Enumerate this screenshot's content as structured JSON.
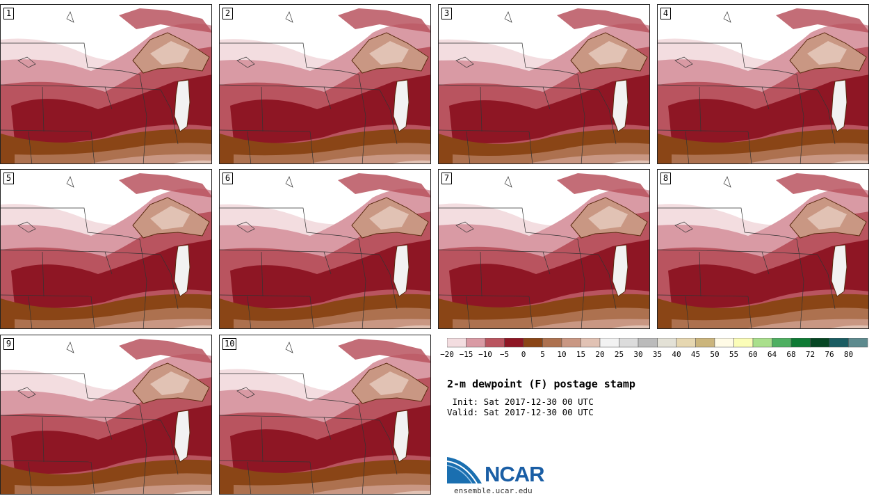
{
  "panels": [
    {
      "label": "1"
    },
    {
      "label": "2"
    },
    {
      "label": "3"
    },
    {
      "label": "4"
    },
    {
      "label": "5"
    },
    {
      "label": "6"
    },
    {
      "label": "7"
    },
    {
      "label": "8"
    },
    {
      "label": "9"
    },
    {
      "label": "10"
    }
  ],
  "colorbar": {
    "ticks": [
      "−20",
      "−15",
      "−10",
      "−5",
      "0",
      "5",
      "10",
      "15",
      "20",
      "25",
      "30",
      "35",
      "40",
      "45",
      "50",
      "55",
      "60",
      "64",
      "68",
      "72",
      "76",
      "80"
    ],
    "colors": [
      "#f3dde0",
      "#d99aa4",
      "#b9545f",
      "#8e1624",
      "#8a4516",
      "#ad714f",
      "#c99783",
      "#e1c2b4",
      "#f2f2f2",
      "#dcdcdc",
      "#bbbbbb",
      "#e3e1d6",
      "#e6d7b1",
      "#cbb57c",
      "#fffbe6",
      "#fbfdb8",
      "#a9df8c",
      "#4eaf61",
      "#0e7a34",
      "#074624",
      "#1a5c62",
      "#5d8a8e"
    ]
  },
  "title": "2-m dewpoint (F) postage stamp",
  "init_line": " Init: Sat 2017-12-30 00 UTC",
  "valid_line": "Valid: Sat 2017-12-30 00 UTC",
  "logo": {
    "text": "NCAR",
    "url": "ensemble.ucar.edu"
  },
  "map_colors": {
    "cold_pale": "#f3dde0",
    "cold_pink": "#d99aa4",
    "cold_mid": "#b9545f",
    "cold_deep": "#8e1624",
    "brown": "#8a4516",
    "tan_dark": "#ad714f",
    "tan": "#c99783",
    "tan_light": "#e1c2b4",
    "near_white": "#f2f2f2"
  }
}
